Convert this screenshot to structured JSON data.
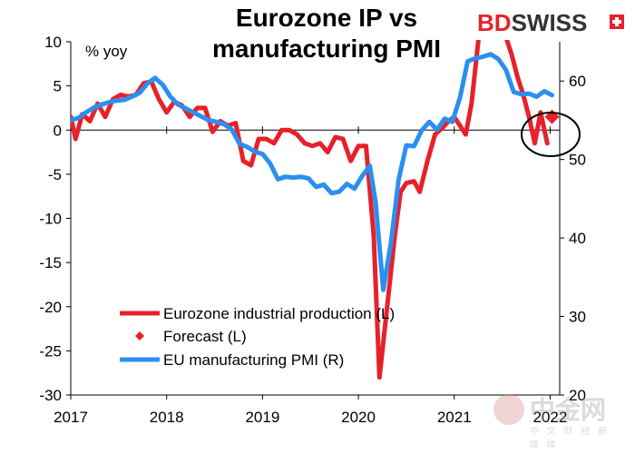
{
  "title_line1": "Eurozone IP vs",
  "title_line2": "manufacturing PMI",
  "brand": {
    "part1": "BD",
    "part2": "SWISS"
  },
  "watermark": {
    "main": "中金网",
    "sub": "中 文 财 经 新 媒 体"
  },
  "chart_data": {
    "type": "line",
    "title": "Eurozone IP vs manufacturing PMI",
    "y_left_label": "% yoy",
    "y_left_range": [
      -30,
      10
    ],
    "y_left_ticks": [
      10,
      5,
      0,
      -5,
      -10,
      -15,
      -20,
      -25,
      -30
    ],
    "y_right_range": [
      20,
      65
    ],
    "y_right_ticks": [
      60,
      50,
      40,
      30,
      20
    ],
    "x_range": [
      2017.0,
      2022.1
    ],
    "x_ticks": [
      "2017",
      "2018",
      "2019",
      "2020",
      "2021",
      "2022"
    ],
    "legend_position": "bottom-left",
    "grid": false,
    "series": [
      {
        "name": "Eurozone industrial production (L)",
        "axis": "left",
        "color": "#e8202a",
        "points": [
          [
            2017.0,
            1.5
          ],
          [
            2017.05,
            -1.0
          ],
          [
            2017.12,
            1.8
          ],
          [
            2017.2,
            1.0
          ],
          [
            2017.28,
            3.0
          ],
          [
            2017.36,
            1.5
          ],
          [
            2017.44,
            3.5
          ],
          [
            2017.52,
            4.0
          ],
          [
            2017.6,
            3.8
          ],
          [
            2017.68,
            4.0
          ],
          [
            2017.76,
            5.3
          ],
          [
            2017.84,
            5.5
          ],
          [
            2017.92,
            3.5
          ],
          [
            2018.0,
            2.0
          ],
          [
            2018.08,
            3.2
          ],
          [
            2018.16,
            2.8
          ],
          [
            2018.24,
            1.5
          ],
          [
            2018.32,
            2.5
          ],
          [
            2018.4,
            2.5
          ],
          [
            2018.48,
            -0.2
          ],
          [
            2018.56,
            1.0
          ],
          [
            2018.64,
            0.5
          ],
          [
            2018.72,
            0.8
          ],
          [
            2018.8,
            -3.5
          ],
          [
            2018.88,
            -4.0
          ],
          [
            2018.96,
            -1.0
          ],
          [
            2019.04,
            -1.0
          ],
          [
            2019.12,
            -1.5
          ],
          [
            2019.2,
            0.0
          ],
          [
            2019.28,
            0.0
          ],
          [
            2019.36,
            -0.5
          ],
          [
            2019.44,
            -1.5
          ],
          [
            2019.52,
            -1.8
          ],
          [
            2019.6,
            -1.5
          ],
          [
            2019.68,
            -2.5
          ],
          [
            2019.76,
            -0.8
          ],
          [
            2019.84,
            -1.0
          ],
          [
            2019.92,
            -3.5
          ],
          [
            2020.0,
            -1.8
          ],
          [
            2020.08,
            -1.8
          ],
          [
            2020.16,
            -12.0
          ],
          [
            2020.22,
            -28.0
          ],
          [
            2020.3,
            -20.0
          ],
          [
            2020.38,
            -12.0
          ],
          [
            2020.44,
            -7.0
          ],
          [
            2020.5,
            -6.0
          ],
          [
            2020.58,
            -5.8
          ],
          [
            2020.64,
            -7.0
          ],
          [
            2020.72,
            -3.5
          ],
          [
            2020.8,
            -0.5
          ],
          [
            2020.88,
            0.3
          ],
          [
            2020.94,
            1.0
          ],
          [
            2021.0,
            1.5
          ],
          [
            2021.06,
            0.5
          ],
          [
            2021.12,
            -0.5
          ],
          [
            2021.18,
            3.0
          ],
          [
            2021.26,
            11.0
          ],
          [
            2021.36,
            14.0
          ],
          [
            2021.46,
            13.5
          ],
          [
            2021.54,
            10.5
          ],
          [
            2021.6,
            8.5
          ],
          [
            2021.66,
            6.0
          ],
          [
            2021.72,
            4.0
          ],
          [
            2021.78,
            1.5
          ],
          [
            2021.84,
            -1.5
          ],
          [
            2021.9,
            2.0
          ],
          [
            2021.97,
            -1.5
          ]
        ]
      },
      {
        "name": "Forecast (L)",
        "axis": "left",
        "color": "#e8202a",
        "marker": "diamond",
        "points": [
          [
            2022.02,
            1.5
          ]
        ]
      },
      {
        "name": "EU manufacturing PMI (R)",
        "axis": "right",
        "color": "#2b8ff0",
        "points": [
          [
            2017.0,
            55.0
          ],
          [
            2017.08,
            55.3
          ],
          [
            2017.16,
            56.0
          ],
          [
            2017.24,
            56.6
          ],
          [
            2017.32,
            57.0
          ],
          [
            2017.4,
            57.3
          ],
          [
            2017.48,
            57.5
          ],
          [
            2017.56,
            57.6
          ],
          [
            2017.64,
            58.0
          ],
          [
            2017.72,
            58.5
          ],
          [
            2017.8,
            59.7
          ],
          [
            2017.88,
            60.4
          ],
          [
            2017.96,
            59.5
          ],
          [
            2018.04,
            58.0
          ],
          [
            2018.12,
            57.0
          ],
          [
            2018.2,
            56.5
          ],
          [
            2018.28,
            56.0
          ],
          [
            2018.36,
            55.5
          ],
          [
            2018.44,
            55.0
          ],
          [
            2018.52,
            54.8
          ],
          [
            2018.6,
            54.5
          ],
          [
            2018.68,
            53.8
          ],
          [
            2018.76,
            52.0
          ],
          [
            2018.84,
            51.6
          ],
          [
            2018.92,
            51.0
          ],
          [
            2019.0,
            50.7
          ],
          [
            2019.08,
            49.5
          ],
          [
            2019.16,
            47.5
          ],
          [
            2019.24,
            47.8
          ],
          [
            2019.32,
            47.7
          ],
          [
            2019.4,
            47.8
          ],
          [
            2019.48,
            47.6
          ],
          [
            2019.56,
            46.5
          ],
          [
            2019.64,
            46.8
          ],
          [
            2019.72,
            45.7
          ],
          [
            2019.8,
            45.9
          ],
          [
            2019.88,
            46.9
          ],
          [
            2019.96,
            46.3
          ],
          [
            2020.04,
            47.9
          ],
          [
            2020.12,
            49.2
          ],
          [
            2020.18,
            44.5
          ],
          [
            2020.26,
            33.4
          ],
          [
            2020.34,
            39.4
          ],
          [
            2020.42,
            47.4
          ],
          [
            2020.5,
            51.8
          ],
          [
            2020.58,
            51.7
          ],
          [
            2020.66,
            53.7
          ],
          [
            2020.74,
            54.8
          ],
          [
            2020.82,
            53.8
          ],
          [
            2020.9,
            55.2
          ],
          [
            2020.98,
            54.8
          ],
          [
            2021.06,
            57.9
          ],
          [
            2021.14,
            62.5
          ],
          [
            2021.22,
            62.9
          ],
          [
            2021.3,
            63.1
          ],
          [
            2021.38,
            63.4
          ],
          [
            2021.46,
            62.8
          ],
          [
            2021.54,
            61.4
          ],
          [
            2021.62,
            58.6
          ],
          [
            2021.7,
            58.3
          ],
          [
            2021.78,
            58.4
          ],
          [
            2021.86,
            58.0
          ],
          [
            2021.94,
            58.7
          ],
          [
            2022.02,
            58.2
          ]
        ]
      }
    ],
    "annotation": "circle around latest data"
  }
}
